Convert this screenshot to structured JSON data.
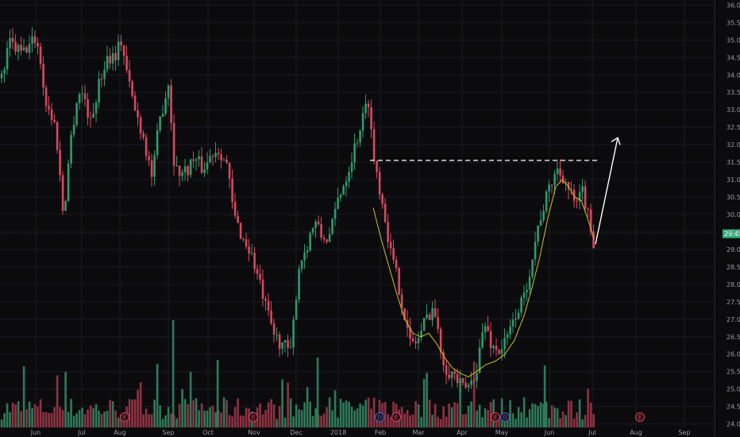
{
  "chart_data": {
    "type": "candlestick",
    "y_axis": {
      "ylim": [
        23.9,
        36.1
      ],
      "ticks": [
        "24.00",
        "24.50",
        "25.00",
        "25.50",
        "26.00",
        "26.50",
        "27.00",
        "27.50",
        "28.00",
        "28.50",
        "29.00",
        "29.50",
        "30.00",
        "30.50",
        "31.00",
        "31.50",
        "32.00",
        "32.50",
        "33.00",
        "33.50",
        "34.00",
        "34.50",
        "35.00",
        "35.50",
        "36.00"
      ],
      "position": "right"
    },
    "x_axis": {
      "labels": [
        "Jun",
        "Jul",
        "Aug",
        "Sep",
        "Oct",
        "Nov",
        "Dec",
        "2018",
        "Feb",
        "Mar",
        "Apr",
        "May",
        "Jun",
        "Jul",
        "Aug",
        "Sep"
      ]
    },
    "current_price": "29.45",
    "resistance_level": 31.55,
    "projection_target": 32.2,
    "grid": true,
    "price_path": [
      [
        0,
        33.7
      ],
      [
        12,
        34.9
      ],
      [
        28,
        34.6
      ],
      [
        46,
        35.1
      ],
      [
        58,
        33.2
      ],
      [
        70,
        32.5
      ],
      [
        80,
        29.9
      ],
      [
        88,
        32.0
      ],
      [
        98,
        33.5
      ],
      [
        106,
        33.4
      ],
      [
        114,
        32.6
      ],
      [
        122,
        33.5
      ],
      [
        134,
        34.5
      ],
      [
        145,
        34.6
      ],
      [
        153,
        35.0
      ],
      [
        160,
        34.0
      ],
      [
        170,
        33.0
      ],
      [
        180,
        32.3
      ],
      [
        192,
        31.0
      ],
      [
        200,
        32.6
      ],
      [
        212,
        33.8
      ],
      [
        220,
        31.3
      ],
      [
        232,
        31.2
      ],
      [
        244,
        31.6
      ],
      [
        256,
        31.3
      ],
      [
        268,
        31.8
      ],
      [
        276,
        31.9
      ],
      [
        286,
        31.4
      ],
      [
        294,
        30.0
      ],
      [
        306,
        29.3
      ],
      [
        316,
        28.9
      ],
      [
        326,
        28.1
      ],
      [
        336,
        27.2
      ],
      [
        346,
        26.5
      ],
      [
        356,
        26.3
      ],
      [
        366,
        26.0
      ],
      [
        376,
        28.5
      ],
      [
        386,
        29.1
      ],
      [
        396,
        29.8
      ],
      [
        406,
        29.3
      ],
      [
        416,
        29.4
      ],
      [
        426,
        30.5
      ],
      [
        436,
        31.1
      ],
      [
        446,
        31.9
      ],
      [
        456,
        32.7
      ],
      [
        464,
        33.3
      ],
      [
        470,
        31.7
      ],
      [
        478,
        30.8
      ],
      [
        486,
        29.8
      ],
      [
        492,
        28.9
      ],
      [
        500,
        28.2
      ],
      [
        508,
        27.3
      ],
      [
        516,
        26.3
      ],
      [
        526,
        26.4
      ],
      [
        536,
        27.0
      ],
      [
        546,
        27.4
      ],
      [
        554,
        26.2
      ],
      [
        562,
        25.6
      ],
      [
        572,
        25.4
      ],
      [
        582,
        25.0
      ],
      [
        592,
        25.1
      ],
      [
        600,
        25.6
      ],
      [
        610,
        26.9
      ],
      [
        620,
        26.2
      ],
      [
        630,
        26.1
      ],
      [
        640,
        26.5
      ],
      [
        650,
        27.2
      ],
      [
        660,
        27.6
      ],
      [
        670,
        28.8
      ],
      [
        680,
        29.9
      ],
      [
        690,
        30.6
      ],
      [
        700,
        31.3
      ],
      [
        710,
        31.1
      ],
      [
        718,
        30.6
      ],
      [
        726,
        30.2
      ],
      [
        734,
        30.7
      ],
      [
        740,
        30.0
      ],
      [
        748,
        29.2
      ]
    ],
    "moving_average": [
      [
        470,
        30.2
      ],
      [
        480,
        29.3
      ],
      [
        490,
        28.5
      ],
      [
        500,
        27.7
      ],
      [
        510,
        27.0
      ],
      [
        520,
        26.6
      ],
      [
        530,
        26.5
      ],
      [
        540,
        26.6
      ],
      [
        550,
        26.3
      ],
      [
        560,
        25.9
      ],
      [
        570,
        25.6
      ],
      [
        580,
        25.45
      ],
      [
        590,
        25.35
      ],
      [
        600,
        25.5
      ],
      [
        612,
        25.7
      ],
      [
        624,
        25.8
      ],
      [
        636,
        26.0
      ],
      [
        648,
        26.4
      ],
      [
        660,
        27.1
      ],
      [
        670,
        27.9
      ],
      [
        680,
        28.8
      ],
      [
        690,
        29.9
      ],
      [
        700,
        30.8
      ],
      [
        708,
        31.0
      ],
      [
        716,
        30.8
      ],
      [
        724,
        30.5
      ],
      [
        732,
        30.4
      ],
      [
        740,
        29.9
      ],
      [
        748,
        29.3
      ]
    ],
    "events": [
      {
        "label": "E",
        "color": "#e0445a"
      },
      {
        "label": "E",
        "color": "#e0445a"
      },
      {
        "label": "D",
        "color": "#2f6fd6"
      },
      {
        "label": "E",
        "color": "#e0445a"
      },
      {
        "label": "E",
        "color": "#e0445a"
      },
      {
        "label": "D",
        "color": "#2f6fd6"
      },
      {
        "label": "E",
        "color": "#e0445a"
      }
    ],
    "colors": {
      "up": "#2e9b6b",
      "down": "#d9485f",
      "volume_up": "#2f7a5a",
      "volume_down": "#8e3344",
      "moving_average": "#d4c21a",
      "grid": "#1b1b22",
      "price_tag": "#2fae78"
    }
  }
}
